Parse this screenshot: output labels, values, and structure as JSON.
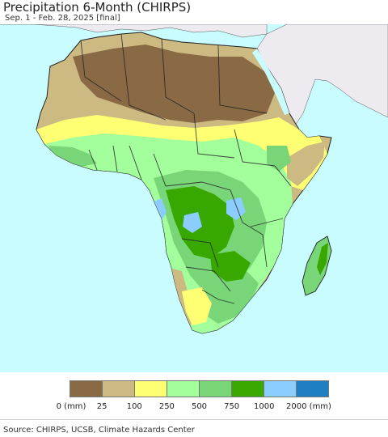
{
  "header": {
    "title": "Precipitation 6-Month (CHIRPS)",
    "subtitle": "Sep. 1 - Feb. 28, 2025 [final]"
  },
  "legend": {
    "colors": [
      "#8a6a44",
      "#cdb982",
      "#ffff73",
      "#a3ff9b",
      "#78d678",
      "#38a800",
      "#8ccdff",
      "#1f7fc2"
    ],
    "labels": [
      "0 (mm)",
      "25",
      "100",
      "250",
      "500",
      "750",
      "1000",
      "2000 (mm)"
    ]
  },
  "map": {
    "colors": {
      "ocean": "#c8fcff",
      "outside_land": "#eeebf0",
      "desert": "#8a6a44",
      "arid": "#cdb982",
      "semi_arid": "#ffff73",
      "moderate": "#a3ff9b",
      "wet": "#78d678",
      "very_wet": "#38a800",
      "extreme": "#8ccdff",
      "border": "#222222"
    }
  },
  "footer": {
    "source": "Source: CHIRPS, UCSB, Climate Hazards Center"
  }
}
